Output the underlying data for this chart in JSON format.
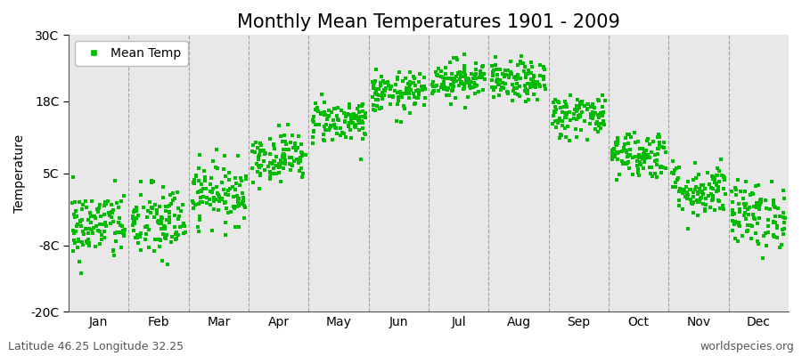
{
  "title": "Monthly Mean Temperatures 1901 - 2009",
  "ylabel": "Temperature",
  "ylim": [
    -20,
    30
  ],
  "yticks": [
    -20,
    -8,
    5,
    18,
    30
  ],
  "ytick_labels": [
    "-20C",
    "-8C",
    "5C",
    "18C",
    "30C"
  ],
  "months": [
    "Jan",
    "Feb",
    "Mar",
    "Apr",
    "May",
    "Jun",
    "Jul",
    "Aug",
    "Sep",
    "Oct",
    "Nov",
    "Dec"
  ],
  "n_years": 109,
  "mean_temps": [
    -4.5,
    -4.0,
    1.5,
    8.0,
    14.5,
    19.5,
    22.0,
    21.5,
    15.5,
    8.5,
    2.0,
    -2.5
  ],
  "std_temps": [
    3.2,
    3.5,
    2.8,
    2.2,
    2.0,
    1.8,
    1.8,
    1.8,
    2.0,
    2.2,
    2.5,
    3.0
  ],
  "marker_color": "#00BB00",
  "marker_size": 5,
  "plot_bg_color": "#E8E8E8",
  "fig_bg_color": "#FFFFFF",
  "vline_color": "#999999",
  "legend_label": "Mean Temp",
  "bottom_left_text": "Latitude 46.25 Longitude 32.25",
  "bottom_right_text": "worldspecies.org",
  "title_fontsize": 15,
  "ylabel_fontsize": 10,
  "tick_fontsize": 10,
  "annotation_fontsize": 9
}
